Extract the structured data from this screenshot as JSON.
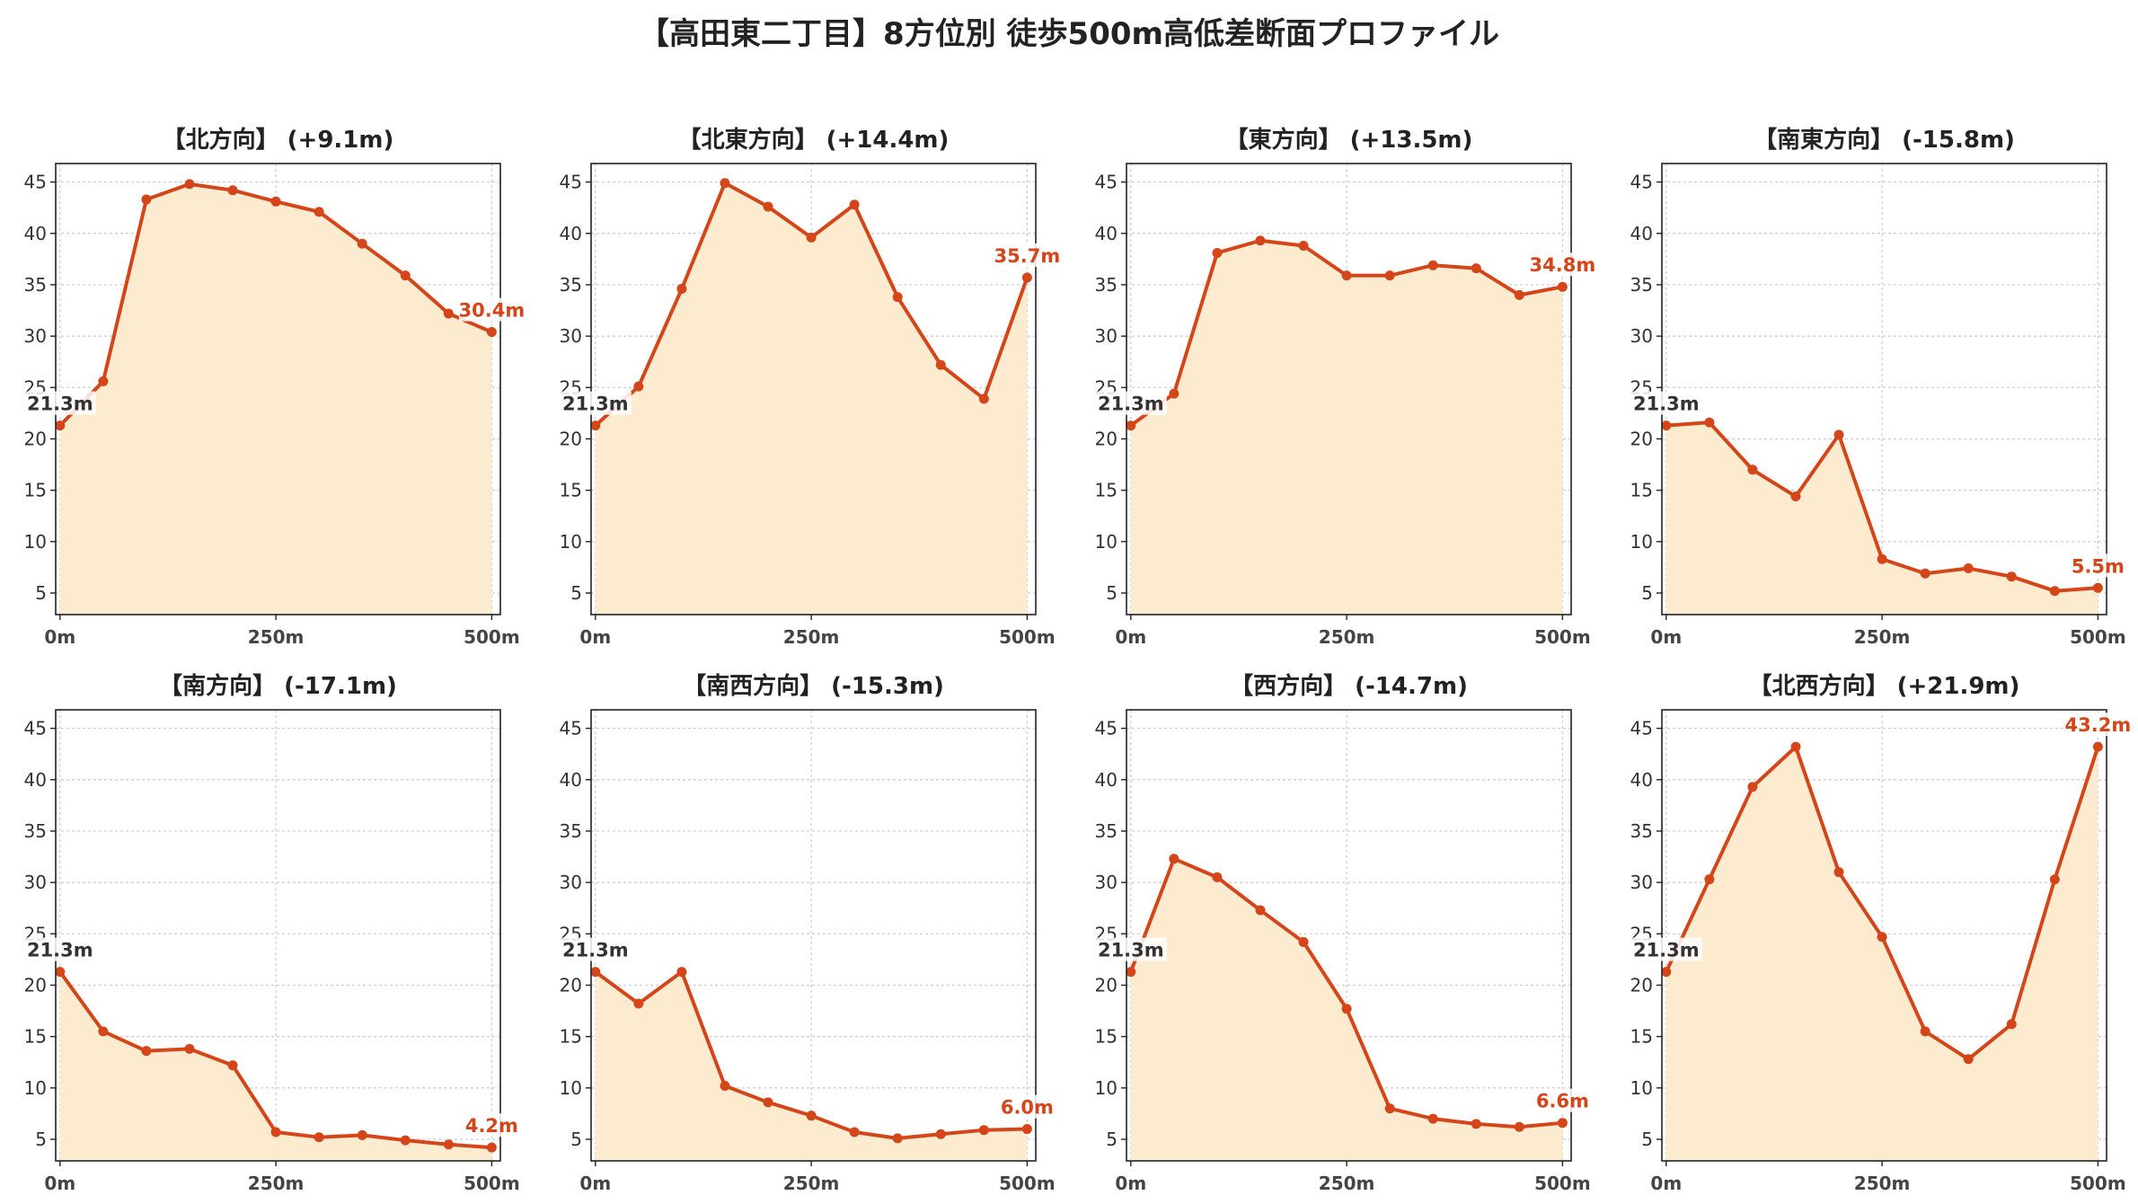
{
  "title": "【高田東二丁目】8方位別 徒歩500m高低差断面プロファイル",
  "colors": {
    "line": "#d4461a",
    "fill": "#fdebd0",
    "start_label": "#333333",
    "end_label": "#d4461a",
    "grid": "#cccccc",
    "axis": "#222222"
  },
  "x_ticks": [
    "0m",
    "250m",
    "500m"
  ],
  "y_ticks": [
    "5",
    "10",
    "15",
    "20",
    "25",
    "30",
    "35",
    "40",
    "45"
  ],
  "chart_data": [
    {
      "type": "area",
      "title": "【北方向】 (+9.1m)",
      "x": [
        0,
        50,
        100,
        150,
        200,
        250,
        300,
        350,
        400,
        450,
        500
      ],
      "values": [
        21.3,
        25.6,
        43.3,
        44.8,
        44.2,
        43.1,
        42.1,
        39.0,
        35.9,
        32.2,
        30.4
      ],
      "start_label": "21.3m",
      "end_label": "30.4m",
      "xlim": [
        -5,
        510
      ],
      "ylim": [
        2.9,
        46.8
      ],
      "grid": true
    },
    {
      "type": "area",
      "title": "【北東方向】 (+14.4m)",
      "x": [
        0,
        50,
        100,
        150,
        200,
        250,
        300,
        350,
        400,
        450,
        500
      ],
      "values": [
        21.3,
        25.1,
        34.6,
        44.9,
        42.6,
        39.6,
        42.8,
        33.8,
        27.2,
        23.9,
        35.7
      ],
      "start_label": "21.3m",
      "end_label": "35.7m",
      "xlim": [
        -5,
        510
      ],
      "ylim": [
        2.9,
        46.8
      ],
      "grid": true
    },
    {
      "type": "area",
      "title": "【東方向】 (+13.5m)",
      "x": [
        0,
        50,
        100,
        150,
        200,
        250,
        300,
        350,
        400,
        450,
        500
      ],
      "values": [
        21.3,
        24.4,
        38.1,
        39.3,
        38.8,
        35.9,
        35.9,
        36.9,
        36.6,
        34.0,
        34.8
      ],
      "start_label": "21.3m",
      "end_label": "34.8m",
      "xlim": [
        -5,
        510
      ],
      "ylim": [
        2.9,
        46.8
      ],
      "grid": true
    },
    {
      "type": "area",
      "title": "【南東方向】 (-15.8m)",
      "x": [
        0,
        50,
        100,
        150,
        200,
        250,
        300,
        350,
        400,
        450,
        500
      ],
      "values": [
        21.3,
        21.6,
        17.0,
        14.4,
        20.4,
        8.3,
        6.9,
        7.4,
        6.6,
        5.2,
        5.5
      ],
      "start_label": "21.3m",
      "end_label": "5.5m",
      "xlim": [
        -5,
        510
      ],
      "ylim": [
        2.9,
        46.8
      ],
      "grid": true
    },
    {
      "type": "area",
      "title": "【南方向】 (-17.1m)",
      "x": [
        0,
        50,
        100,
        150,
        200,
        250,
        300,
        350,
        400,
        450,
        500
      ],
      "values": [
        21.3,
        15.5,
        13.6,
        13.8,
        12.2,
        5.7,
        5.2,
        5.4,
        4.9,
        4.5,
        4.2
      ],
      "start_label": "21.3m",
      "end_label": "4.2m",
      "xlim": [
        -5,
        510
      ],
      "ylim": [
        2.9,
        46.8
      ],
      "grid": true
    },
    {
      "type": "area",
      "title": "【南西方向】 (-15.3m)",
      "x": [
        0,
        50,
        100,
        150,
        200,
        250,
        300,
        350,
        400,
        450,
        500
      ],
      "values": [
        21.3,
        18.2,
        21.3,
        10.2,
        8.6,
        7.3,
        5.7,
        5.1,
        5.5,
        5.9,
        6.0
      ],
      "start_label": "21.3m",
      "end_label": "6.0m",
      "xlim": [
        -5,
        510
      ],
      "ylim": [
        2.9,
        46.8
      ],
      "grid": true
    },
    {
      "type": "area",
      "title": "【西方向】 (-14.7m)",
      "x": [
        0,
        50,
        100,
        150,
        200,
        250,
        300,
        350,
        400,
        450,
        500
      ],
      "values": [
        21.3,
        32.3,
        30.5,
        27.3,
        24.2,
        17.7,
        8.0,
        7.0,
        6.5,
        6.2,
        6.6
      ],
      "start_label": "21.3m",
      "end_label": "6.6m",
      "xlim": [
        -5,
        510
      ],
      "ylim": [
        2.9,
        46.8
      ],
      "grid": true
    },
    {
      "type": "area",
      "title": "【北西方向】 (+21.9m)",
      "x": [
        0,
        50,
        100,
        150,
        200,
        250,
        300,
        350,
        400,
        450,
        500
      ],
      "values": [
        21.3,
        30.3,
        39.3,
        43.2,
        31.0,
        24.7,
        15.5,
        12.8,
        16.2,
        30.3,
        43.2
      ],
      "start_label": "21.3m",
      "end_label": "43.2m",
      "xlim": [
        -5,
        510
      ],
      "ylim": [
        2.9,
        46.8
      ],
      "grid": true
    }
  ]
}
